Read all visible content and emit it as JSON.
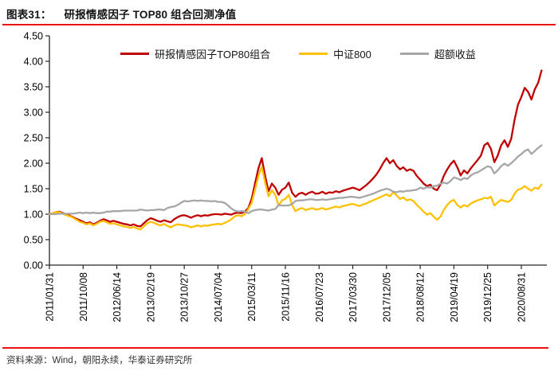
{
  "header": {
    "figure_label": "图表31：",
    "title": "研报情感因子 TOP80 组合回测净值"
  },
  "footer": {
    "source": "资料来源：Wind，朝阳永续，华泰证券研究所"
  },
  "colors": {
    "accent_rule": "#e8130c",
    "axis": "#262626",
    "top80_line": "#c00000",
    "csi800_line": "#ffc000",
    "excess_line": "#a6a6a6"
  },
  "chart_data": {
    "type": "line",
    "title": "研报情感因子 TOP80 组合回测净值",
    "grid": false,
    "legend_position": "top",
    "y_axis": {
      "min": 0,
      "max": 4.5,
      "step": 0.5,
      "tick_format": "0.00"
    },
    "x_ticks": [
      "2011/01/31",
      "2011/10/08",
      "2012/06/14",
      "2013/02/19",
      "2013/10/27",
      "2014/07/04",
      "2015/03/11",
      "2015/11/16",
      "2016/07/23",
      "2017/03/30",
      "2017/12/05",
      "2018/08/12",
      "2019/04/19",
      "2019/12/25",
      "2020/08/31"
    ],
    "points_per_tick": 10,
    "series": [
      {
        "name": "研报情感因子TOP80组合",
        "color": "#c00000",
        "values": [
          1.0,
          1.02,
          1.04,
          1.05,
          1.02,
          0.99,
          0.97,
          0.94,
          0.91,
          0.88,
          0.85,
          0.82,
          0.84,
          0.8,
          0.83,
          0.87,
          0.9,
          0.88,
          0.85,
          0.87,
          0.85,
          0.83,
          0.81,
          0.8,
          0.78,
          0.8,
          0.77,
          0.76,
          0.82,
          0.88,
          0.92,
          0.9,
          0.87,
          0.85,
          0.88,
          0.86,
          0.84,
          0.9,
          0.94,
          0.97,
          0.98,
          0.96,
          0.93,
          0.96,
          0.98,
          0.96,
          0.98,
          0.97,
          0.99,
          1.0,
          1.0,
          0.99,
          1.01,
          1.0,
          0.99,
          1.02,
          1.03,
          1.02,
          1.05,
          1.12,
          1.3,
          1.6,
          1.9,
          2.1,
          1.75,
          1.45,
          1.6,
          1.52,
          1.38,
          1.48,
          1.52,
          1.62,
          1.42,
          1.34,
          1.4,
          1.42,
          1.38,
          1.42,
          1.44,
          1.4,
          1.41,
          1.44,
          1.4,
          1.43,
          1.42,
          1.45,
          1.43,
          1.46,
          1.48,
          1.5,
          1.52,
          1.5,
          1.47,
          1.52,
          1.57,
          1.63,
          1.7,
          1.78,
          1.88,
          2.0,
          2.1,
          2.0,
          2.06,
          1.95,
          1.88,
          1.92,
          1.85,
          1.88,
          1.85,
          1.75,
          1.68,
          1.6,
          1.55,
          1.58,
          1.5,
          1.47,
          1.58,
          1.75,
          1.88,
          1.98,
          2.05,
          1.92,
          1.76,
          1.86,
          1.8,
          1.9,
          1.98,
          2.06,
          2.15,
          2.35,
          2.4,
          2.28,
          2.02,
          2.15,
          2.35,
          2.45,
          2.32,
          2.48,
          2.85,
          3.15,
          3.3,
          3.48,
          3.4,
          3.25,
          3.45,
          3.58,
          3.82
        ]
      },
      {
        "name": "中证800",
        "color": "#ffc000",
        "values": [
          1.0,
          1.02,
          1.04,
          1.04,
          1.01,
          0.98,
          0.96,
          0.93,
          0.89,
          0.85,
          0.83,
          0.8,
          0.82,
          0.78,
          0.81,
          0.85,
          0.87,
          0.84,
          0.81,
          0.82,
          0.8,
          0.78,
          0.76,
          0.75,
          0.73,
          0.75,
          0.72,
          0.7,
          0.76,
          0.82,
          0.85,
          0.83,
          0.8,
          0.78,
          0.81,
          0.77,
          0.74,
          0.78,
          0.8,
          0.79,
          0.78,
          0.77,
          0.74,
          0.76,
          0.78,
          0.76,
          0.78,
          0.77,
          0.79,
          0.8,
          0.81,
          0.8,
          0.83,
          0.86,
          0.9,
          0.96,
          0.98,
          0.96,
          1.0,
          1.1,
          1.22,
          1.48,
          1.75,
          1.93,
          1.62,
          1.35,
          1.47,
          1.38,
          1.17,
          1.27,
          1.3,
          1.38,
          1.18,
          1.06,
          1.1,
          1.12,
          1.08,
          1.1,
          1.12,
          1.09,
          1.1,
          1.12,
          1.09,
          1.11,
          1.13,
          1.15,
          1.13,
          1.16,
          1.17,
          1.19,
          1.2,
          1.18,
          1.16,
          1.19,
          1.21,
          1.24,
          1.27,
          1.3,
          1.33,
          1.36,
          1.39,
          1.35,
          1.43,
          1.37,
          1.3,
          1.33,
          1.27,
          1.29,
          1.26,
          1.18,
          1.12,
          1.05,
          0.99,
          1.02,
          0.95,
          0.89,
          0.95,
          1.08,
          1.18,
          1.25,
          1.28,
          1.18,
          1.13,
          1.18,
          1.15,
          1.21,
          1.24,
          1.27,
          1.29,
          1.32,
          1.31,
          1.34,
          1.17,
          1.23,
          1.28,
          1.26,
          1.24,
          1.28,
          1.4,
          1.48,
          1.5,
          1.55,
          1.5,
          1.46,
          1.52,
          1.5,
          1.58
        ]
      },
      {
        "name": "超额收益",
        "color": "#a6a6a6",
        "values": [
          1.0,
          1.0,
          1.0,
          1.01,
          1.01,
          1.01,
          1.01,
          1.01,
          1.02,
          1.03,
          1.02,
          1.03,
          1.02,
          1.03,
          1.02,
          1.02,
          1.03,
          1.05,
          1.05,
          1.06,
          1.06,
          1.06,
          1.07,
          1.07,
          1.07,
          1.07,
          1.07,
          1.09,
          1.08,
          1.07,
          1.08,
          1.08,
          1.09,
          1.09,
          1.08,
          1.12,
          1.14,
          1.15,
          1.18,
          1.22,
          1.26,
          1.25,
          1.26,
          1.27,
          1.26,
          1.27,
          1.26,
          1.26,
          1.25,
          1.26,
          1.24,
          1.24,
          1.22,
          1.17,
          1.11,
          1.07,
          1.05,
          1.06,
          1.05,
          1.02,
          1.06,
          1.08,
          1.09,
          1.09,
          1.08,
          1.07,
          1.09,
          1.1,
          1.18,
          1.17,
          1.17,
          1.17,
          1.2,
          1.26,
          1.27,
          1.27,
          1.28,
          1.29,
          1.29,
          1.28,
          1.28,
          1.29,
          1.28,
          1.29,
          1.3,
          1.31,
          1.32,
          1.32,
          1.33,
          1.34,
          1.34,
          1.33,
          1.32,
          1.34,
          1.36,
          1.38,
          1.4,
          1.43,
          1.46,
          1.48,
          1.5,
          1.48,
          1.44,
          1.43,
          1.45,
          1.44,
          1.46,
          1.46,
          1.47,
          1.48,
          1.52,
          1.5,
          1.53,
          1.52,
          1.55,
          1.56,
          1.6,
          1.62,
          1.6,
          1.65,
          1.72,
          1.7,
          1.67,
          1.71,
          1.69,
          1.76,
          1.8,
          1.82,
          1.86,
          1.9,
          1.94,
          1.92,
          1.8,
          1.86,
          1.94,
          1.99,
          1.95,
          2.0,
          2.06,
          2.13,
          2.18,
          2.24,
          2.27,
          2.18,
          2.24,
          2.3,
          2.35
        ]
      }
    ]
  }
}
